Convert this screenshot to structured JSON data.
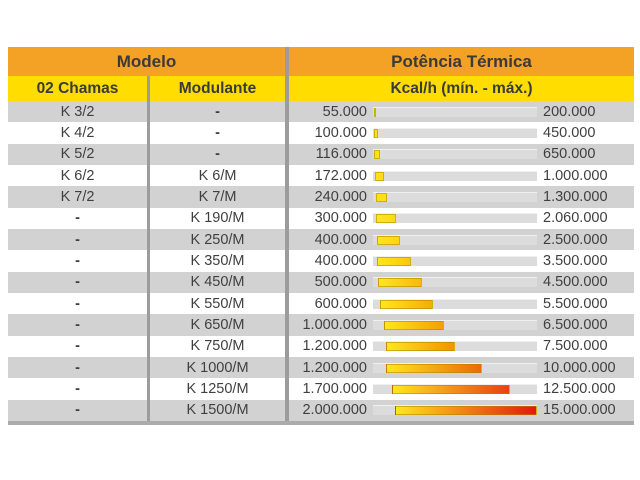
{
  "header": {
    "modelo": "Modelo",
    "potencia": "Potência Térmica",
    "col_chamas": "02 Chamas",
    "col_modulante": "Modulante",
    "col_kcal": "Kcal/h (mín. - máx.)"
  },
  "colors": {
    "header_orange": "#F3A226",
    "subheader_yellow": "#FFDD00",
    "row_gray": "#D2D2D2",
    "divider_gray": "#9C9C9C",
    "track_gray": "#DCDCDC",
    "bar_yellow": "#FFE018",
    "bar_orange": "#F39200",
    "bar_red": "#E31813"
  },
  "chart_data": {
    "type": "table",
    "title": "Potência Térmica",
    "unit": "Kcal/h",
    "columns": [
      "02 Chamas",
      "Modulante",
      "Kcal/h (mín. - máx.)"
    ],
    "scale": [
      0,
      15000000
    ],
    "bar_style": "horizontal range bar, yellow-to-red gradient by magnitude",
    "rows": [
      {
        "chamas": "K 3/2",
        "modulante": "-",
        "min": 55000,
        "max": 200000,
        "min_label": "55.000",
        "max_label": "200.000"
      },
      {
        "chamas": "K 4/2",
        "modulante": "-",
        "min": 100000,
        "max": 450000,
        "min_label": "100.000",
        "max_label": "450.000"
      },
      {
        "chamas": "K 5/2",
        "modulante": "-",
        "min": 116000,
        "max": 650000,
        "min_label": "116.000",
        "max_label": "650.000"
      },
      {
        "chamas": "K 6/2",
        "modulante": "K 6/M",
        "min": 172000,
        "max": 1000000,
        "min_label": "172.000",
        "max_label": "1.000.000"
      },
      {
        "chamas": "K 7/2",
        "modulante": "K 7/M",
        "min": 240000,
        "max": 1300000,
        "min_label": "240.000",
        "max_label": "1.300.000"
      },
      {
        "chamas": "-",
        "modulante": "K 190/M",
        "min": 300000,
        "max": 2060000,
        "min_label": "300.000",
        "max_label": "2.060.000"
      },
      {
        "chamas": "-",
        "modulante": "K 250/M",
        "min": 400000,
        "max": 2500000,
        "min_label": "400.000",
        "max_label": "2.500.000"
      },
      {
        "chamas": "-",
        "modulante": "K 350/M",
        "min": 400000,
        "max": 3500000,
        "min_label": "400.000",
        "max_label": "3.500.000"
      },
      {
        "chamas": "-",
        "modulante": "K 450/M",
        "min": 500000,
        "max": 4500000,
        "min_label": "500.000",
        "max_label": "4.500.000"
      },
      {
        "chamas": "-",
        "modulante": "K 550/M",
        "min": 600000,
        "max": 5500000,
        "min_label": "600.000",
        "max_label": "5.500.000"
      },
      {
        "chamas": "-",
        "modulante": "K 650/M",
        "min": 1000000,
        "max": 6500000,
        "min_label": "1.000.000",
        "max_label": "6.500.000"
      },
      {
        "chamas": "-",
        "modulante": "K 750/M",
        "min": 1200000,
        "max": 7500000,
        "min_label": "1.200.000",
        "max_label": "7.500.000"
      },
      {
        "chamas": "-",
        "modulante": "K 1000/M",
        "min": 1200000,
        "max": 10000000,
        "min_label": "1.200.000",
        "max_label": "10.000.000"
      },
      {
        "chamas": "-",
        "modulante": "K 1250/M",
        "min": 1700000,
        "max": 12500000,
        "min_label": "1.700.000",
        "max_label": "12.500.000"
      },
      {
        "chamas": "-",
        "modulante": "K 1500/M",
        "min": 2000000,
        "max": 15000000,
        "min_label": "2.000.000",
        "max_label": "15.000.000"
      }
    ]
  }
}
